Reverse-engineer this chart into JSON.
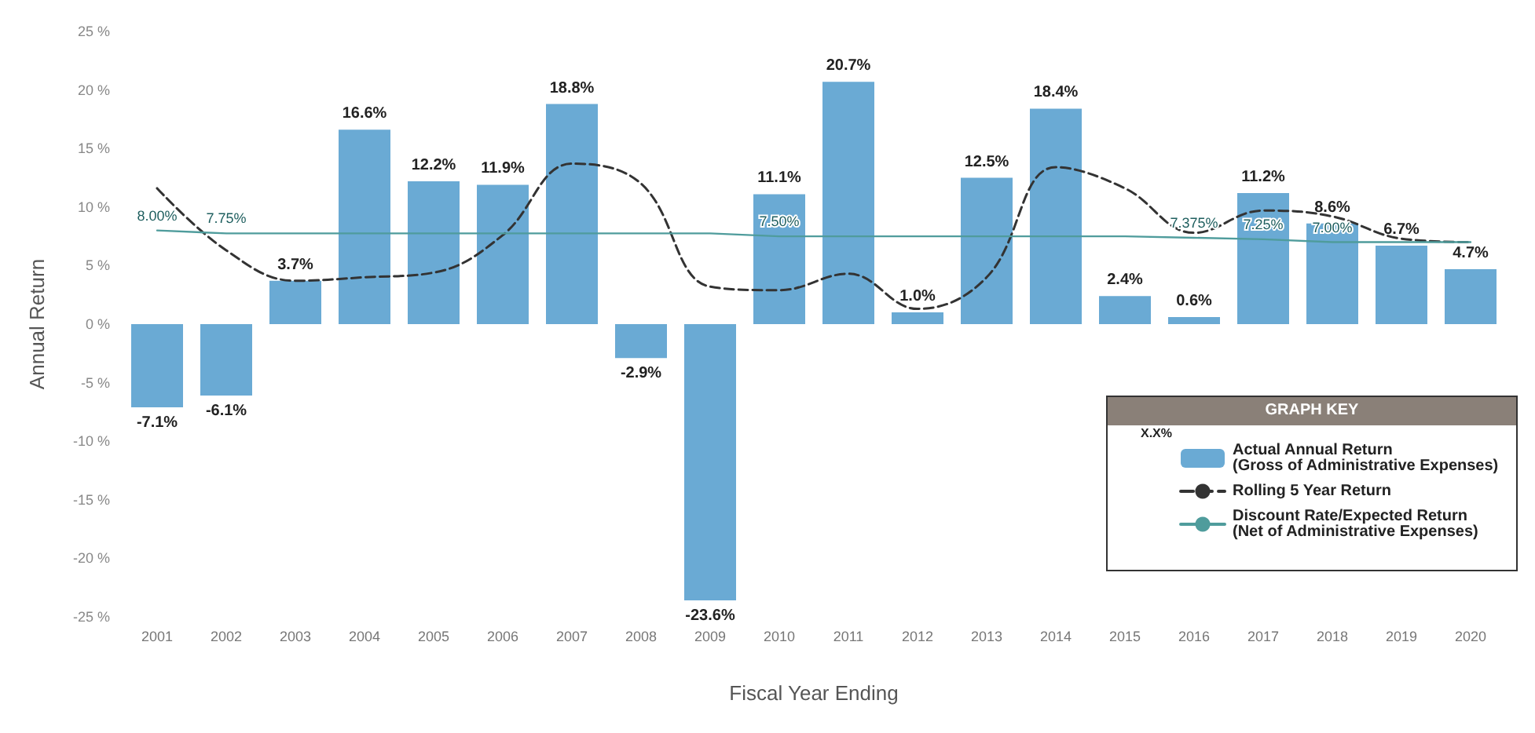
{
  "chart_data": {
    "type": "bar",
    "xlabel": "Fiscal Year Ending",
    "ylabel": "Annual Return",
    "legend_title": "GRAPH KEY",
    "annotations": [
      "X.X%"
    ],
    "categories": [
      "2001",
      "2002",
      "2003",
      "2004",
      "2005",
      "2006",
      "2007",
      "2008",
      "2009",
      "2010",
      "2011",
      "2012",
      "2013",
      "2014",
      "2015",
      "2016",
      "2017",
      "2018",
      "2019",
      "2020"
    ],
    "series": [
      {
        "name": "Actual Annual Return\n(Gross of Administrative Expenses)",
        "color": "#6aaad4",
        "values": [
          -7.1,
          -6.1,
          3.7,
          16.6,
          12.2,
          11.9,
          18.8,
          -2.9,
          -23.6,
          11.1,
          20.7,
          1.0,
          12.5,
          18.4,
          2.4,
          0.6,
          11.2,
          8.6,
          6.7,
          4.7
        ],
        "value_labels": [
          "-7.1%",
          "-6.1%",
          "3.7%",
          "16.6%",
          "12.2%",
          "11.9%",
          "18.8%",
          "-2.9%",
          "-23.6%",
          "11.1%",
          "20.7%",
          "1.0%",
          "12.5%",
          "18.4%",
          "2.4%",
          "0.6%",
          "11.2%",
          "8.6%",
          "6.7%",
          "4.7%"
        ]
      },
      {
        "name": "Rolling 5 Year Return",
        "type": "line",
        "color": "#333333",
        "line_style": "dashed",
        "marker": "none",
        "values": [
          11.6,
          6.3,
          3.7,
          4.0,
          4.4,
          7.6,
          13.7,
          12.0,
          3.2,
          2.9,
          4.3,
          1.3,
          4.0,
          13.4,
          11.6,
          7.8,
          9.7,
          9.2,
          7.3,
          7.0
        ]
      },
      {
        "name": "Discount Rate/Expected Return\n(Net of Administrative Expenses)",
        "type": "line",
        "color": "#4f9c9c",
        "line_style": "solid",
        "marker": "none",
        "values": [
          8.0,
          7.75,
          7.75,
          7.75,
          7.75,
          7.75,
          7.75,
          7.75,
          7.75,
          7.5,
          7.5,
          7.5,
          7.5,
          7.5,
          7.5,
          7.375,
          7.25,
          7.0,
          7.0,
          7.0
        ],
        "value_labels": [
          "8.00%",
          "7.75%",
          null,
          null,
          null,
          null,
          null,
          null,
          null,
          "7.50%",
          null,
          null,
          null,
          null,
          null,
          "7.375%",
          "7.25%",
          "7.00%",
          null,
          null
        ]
      }
    ],
    "ylim": [
      -25,
      25
    ],
    "yticks": [
      {
        "value": -25,
        "label": "-25 %"
      },
      {
        "value": -20,
        "label": "-20 %"
      },
      {
        "value": -15,
        "label": "-15 %"
      },
      {
        "value": -10,
        "label": "-10 %"
      },
      {
        "value": -5,
        "label": "-5 %"
      },
      {
        "value": 0,
        "label": "0 %"
      },
      {
        "value": 5,
        "label": "5 %"
      },
      {
        "value": 10,
        "label": "10 %"
      },
      {
        "value": 15,
        "label": "15 %"
      },
      {
        "value": 20,
        "label": "20 %"
      },
      {
        "value": 25,
        "label": "25 %"
      }
    ],
    "grid": false,
    "legend": "bottom right"
  }
}
